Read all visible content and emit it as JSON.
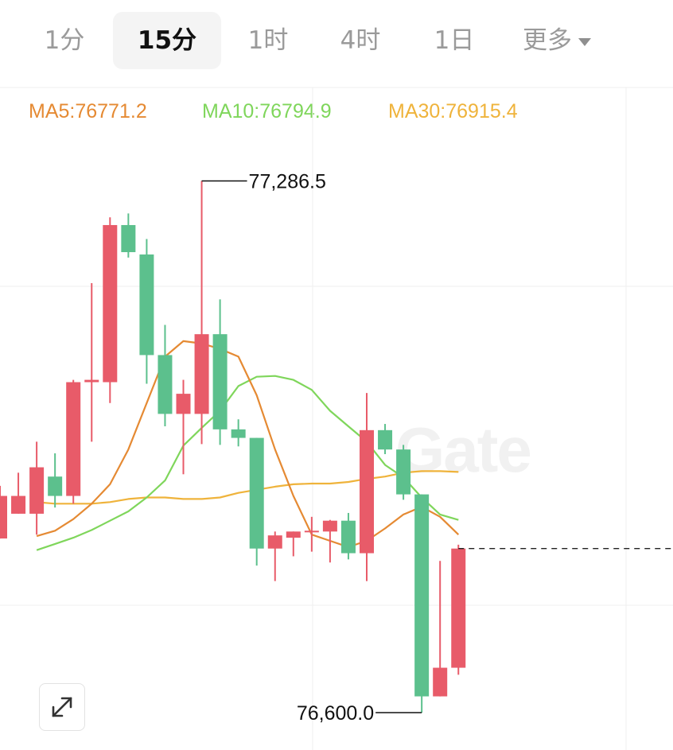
{
  "timeframe_tabs": [
    {
      "label": "1分",
      "active": false
    },
    {
      "label": "15分",
      "active": true
    },
    {
      "label": "1时",
      "active": false
    },
    {
      "label": "4时",
      "active": false
    },
    {
      "label": "1日",
      "active": false
    },
    {
      "label": "更多",
      "active": false,
      "has_dropdown": true
    }
  ],
  "indicators": {
    "ma5": "MA5:76771.2",
    "ma10": "MA10:76794.9",
    "ma30": "MA30:76915.4"
  },
  "watermark": "Gate",
  "colors": {
    "up": "#e85b69",
    "down": "#5cc08d",
    "ma5": "#e58a33",
    "ma10": "#7fd65b",
    "ma30": "#efb33b",
    "grid": "#efefef"
  },
  "chart_data": {
    "type": "candlestick",
    "interval": "15分",
    "high_label": "77,286.5",
    "low_label": "76,600.0",
    "last_price": 76812,
    "candles": [
      {
        "o": 76825,
        "h": 76893,
        "l": 76825,
        "c": 76880
      },
      {
        "o": 76857,
        "h": 76910,
        "l": 76857,
        "c": 76880
      },
      {
        "o": 76857,
        "h": 76950,
        "l": 76830,
        "c": 76917
      },
      {
        "o": 76905,
        "h": 76935,
        "l": 76865,
        "c": 76880
      },
      {
        "o": 76880,
        "h": 77030,
        "l": 76870,
        "c": 77027
      },
      {
        "o": 77027,
        "h": 77155,
        "l": 76950,
        "c": 77030
      },
      {
        "o": 77027,
        "h": 77240,
        "l": 77000,
        "c": 77230
      },
      {
        "o": 77230,
        "h": 77245,
        "l": 77188,
        "c": 77195
      },
      {
        "o": 77192,
        "h": 77212,
        "l": 77025,
        "c": 77062
      },
      {
        "o": 77062,
        "h": 77101,
        "l": 76970,
        "c": 76986
      },
      {
        "o": 76986,
        "h": 77030,
        "l": 76908,
        "c": 77012
      },
      {
        "o": 76986,
        "h": 77287,
        "l": 76947,
        "c": 77089
      },
      {
        "o": 77089,
        "h": 77134,
        "l": 76946,
        "c": 76966
      },
      {
        "o": 76966,
        "h": 76979,
        "l": 76944,
        "c": 76955
      },
      {
        "o": 76955,
        "h": 76955,
        "l": 76790,
        "c": 76812
      },
      {
        "o": 76812,
        "h": 76834,
        "l": 76770,
        "c": 76829
      },
      {
        "o": 76826,
        "h": 76834,
        "l": 76802,
        "c": 76834
      },
      {
        "o": 76834,
        "h": 76853,
        "l": 76808,
        "c": 76834
      },
      {
        "o": 76834,
        "h": 76849,
        "l": 76794,
        "c": 76848
      },
      {
        "o": 76848,
        "h": 76858,
        "l": 76798,
        "c": 76806
      },
      {
        "o": 76806,
        "h": 77013,
        "l": 76770,
        "c": 76965
      },
      {
        "o": 76965,
        "h": 76973,
        "l": 76934,
        "c": 76940
      },
      {
        "o": 76940,
        "h": 76946,
        "l": 76875,
        "c": 76882
      },
      {
        "o": 76882,
        "h": 76882,
        "l": 76600,
        "c": 76621
      },
      {
        "o": 76621,
        "h": 76796,
        "l": 76621,
        "c": 76658
      },
      {
        "o": 76658,
        "h": 76817,
        "l": 76649,
        "c": 76812
      }
    ],
    "ma5_line": [
      76828,
      76835,
      76850,
      76870,
      76895,
      76940,
      77000,
      77060,
      77080,
      77077,
      77070,
      77060,
      77010,
      76940,
      76880,
      76830,
      76822,
      76814,
      76822,
      76838,
      76856,
      76866,
      76853,
      76830
    ],
    "ma10_line": [
      76810,
      76818,
      76826,
      76836,
      76848,
      76860,
      76878,
      76900,
      76945,
      76968,
      76990,
      77022,
      77034,
      77035,
      77030,
      77017,
      76990,
      76970,
      76950,
      76920,
      76904,
      76878,
      76856,
      76849
    ],
    "ma30_line": [
      76872,
      76870,
      76870,
      76870,
      76872,
      76876,
      76878,
      76878,
      76876,
      76876,
      76878,
      76884,
      76888,
      76892,
      76895,
      76896,
      76896,
      76898,
      76902,
      76905,
      76910,
      76912,
      76912,
      76911
    ]
  }
}
